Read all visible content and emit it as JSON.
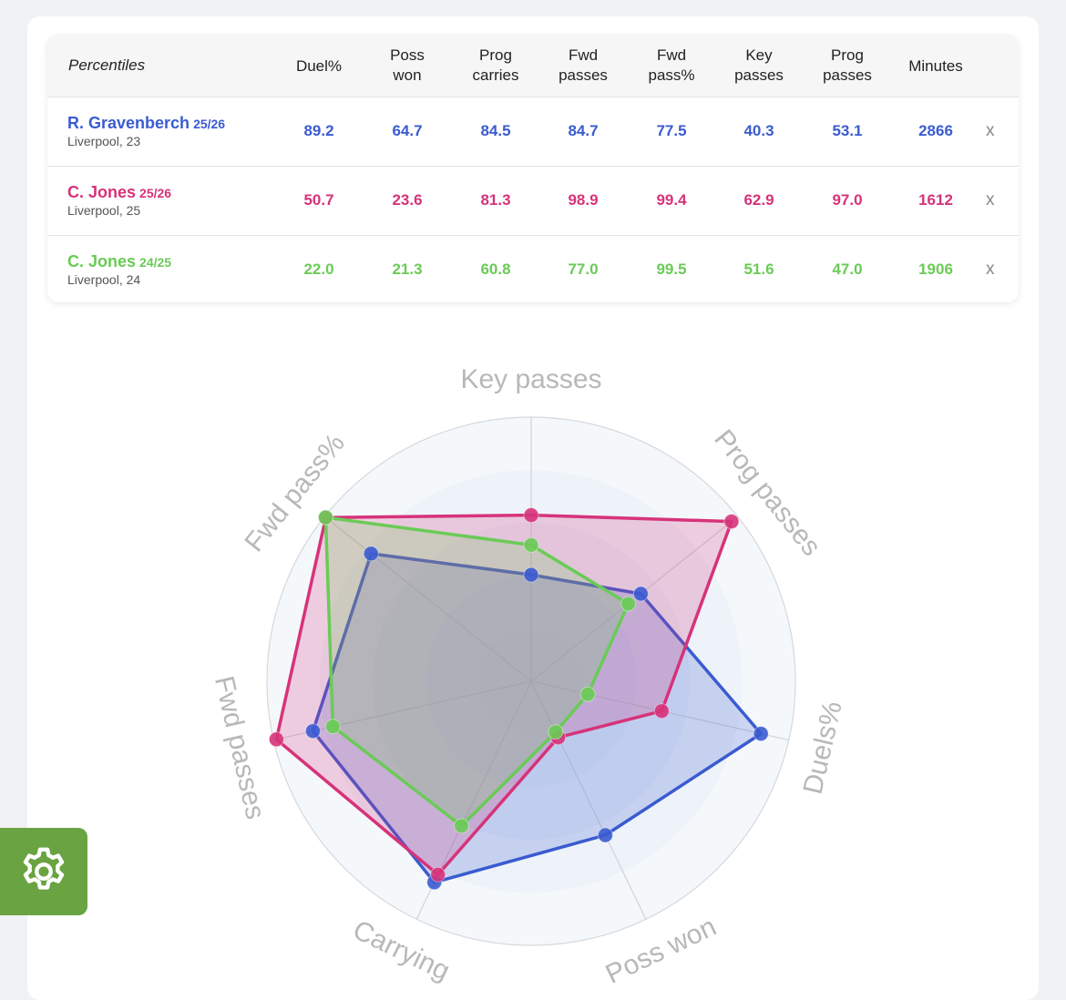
{
  "table": {
    "label_header": "Percentiles",
    "columns": [
      "Duel%",
      "Poss\nwon",
      "Prog\ncarries",
      "Fwd\npasses",
      "Fwd\npass%",
      "Key\npasses",
      "Prog\npasses",
      "Minutes"
    ],
    "remove_label": "x",
    "rows": [
      {
        "name": "R. Gravenberch",
        "season": "25/26",
        "sub": "Liverpool, 23",
        "color": "#3a5bd1",
        "values": [
          "89.2",
          "64.7",
          "84.5",
          "84.7",
          "77.5",
          "40.3",
          "53.1",
          "2866"
        ]
      },
      {
        "name": "C. Jones",
        "season": "25/26",
        "sub": "Liverpool, 25",
        "color": "#d6337a",
        "values": [
          "50.7",
          "23.6",
          "81.3",
          "98.9",
          "99.4",
          "62.9",
          "97.0",
          "1612"
        ]
      },
      {
        "name": "C. Jones",
        "season": "24/25",
        "sub": "Liverpool, 24",
        "color": "#6acb56",
        "values": [
          "22.0",
          "21.3",
          "60.8",
          "77.0",
          "99.5",
          "51.6",
          "47.0",
          "1906"
        ]
      }
    ]
  },
  "chart_data": {
    "type": "radar",
    "axes": [
      "Key passes",
      "Prog passes",
      "Duels%",
      "Poss won",
      "Carrying",
      "Fwd passes",
      "Fwd pass%"
    ],
    "range": [
      0,
      100
    ],
    "series": [
      {
        "name": "R. Gravenberch 25/26",
        "color": "#3a5bd1",
        "values": [
          40.3,
          53.1,
          89.2,
          64.7,
          84.5,
          84.7,
          77.5
        ]
      },
      {
        "name": "C. Jones 25/26",
        "color": "#d6337a",
        "values": [
          62.9,
          97.0,
          50.7,
          23.6,
          81.3,
          98.9,
          99.4
        ]
      },
      {
        "name": "C. Jones 24/25",
        "color": "#6acb56",
        "values": [
          51.6,
          47.0,
          22.0,
          21.3,
          60.8,
          77.0,
          99.5
        ]
      }
    ]
  },
  "settings": {
    "icon": "gear-icon"
  }
}
